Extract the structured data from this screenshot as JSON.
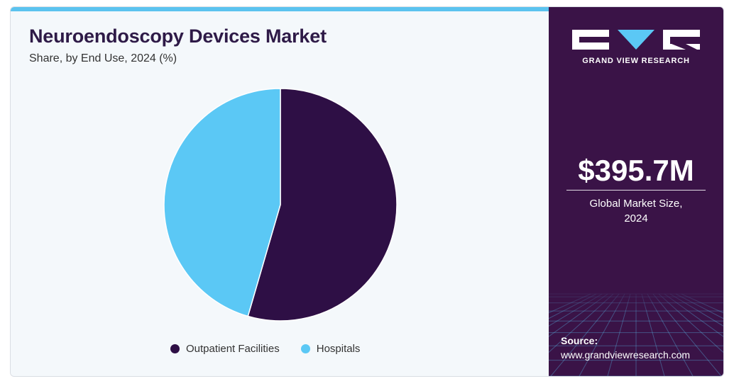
{
  "header": {
    "title": "Neuroendoscopy Devices Market",
    "subtitle": "Share, by End Use, 2024 (%)"
  },
  "chart_data": {
    "type": "pie",
    "categories": [
      "Outpatient Facilities",
      "Hospitals"
    ],
    "values": [
      54.5,
      45.5
    ],
    "colors": [
      "#2e0f45",
      "#5bc8f5"
    ],
    "legend_position": "bottom"
  },
  "sidebar": {
    "brand": "GRAND VIEW RESEARCH",
    "market_value": "$395.7M",
    "market_label_line1": "Global Market Size,",
    "market_label_line2": "2024",
    "source_title": "Source:",
    "source_url": "www.grandviewresearch.com"
  }
}
